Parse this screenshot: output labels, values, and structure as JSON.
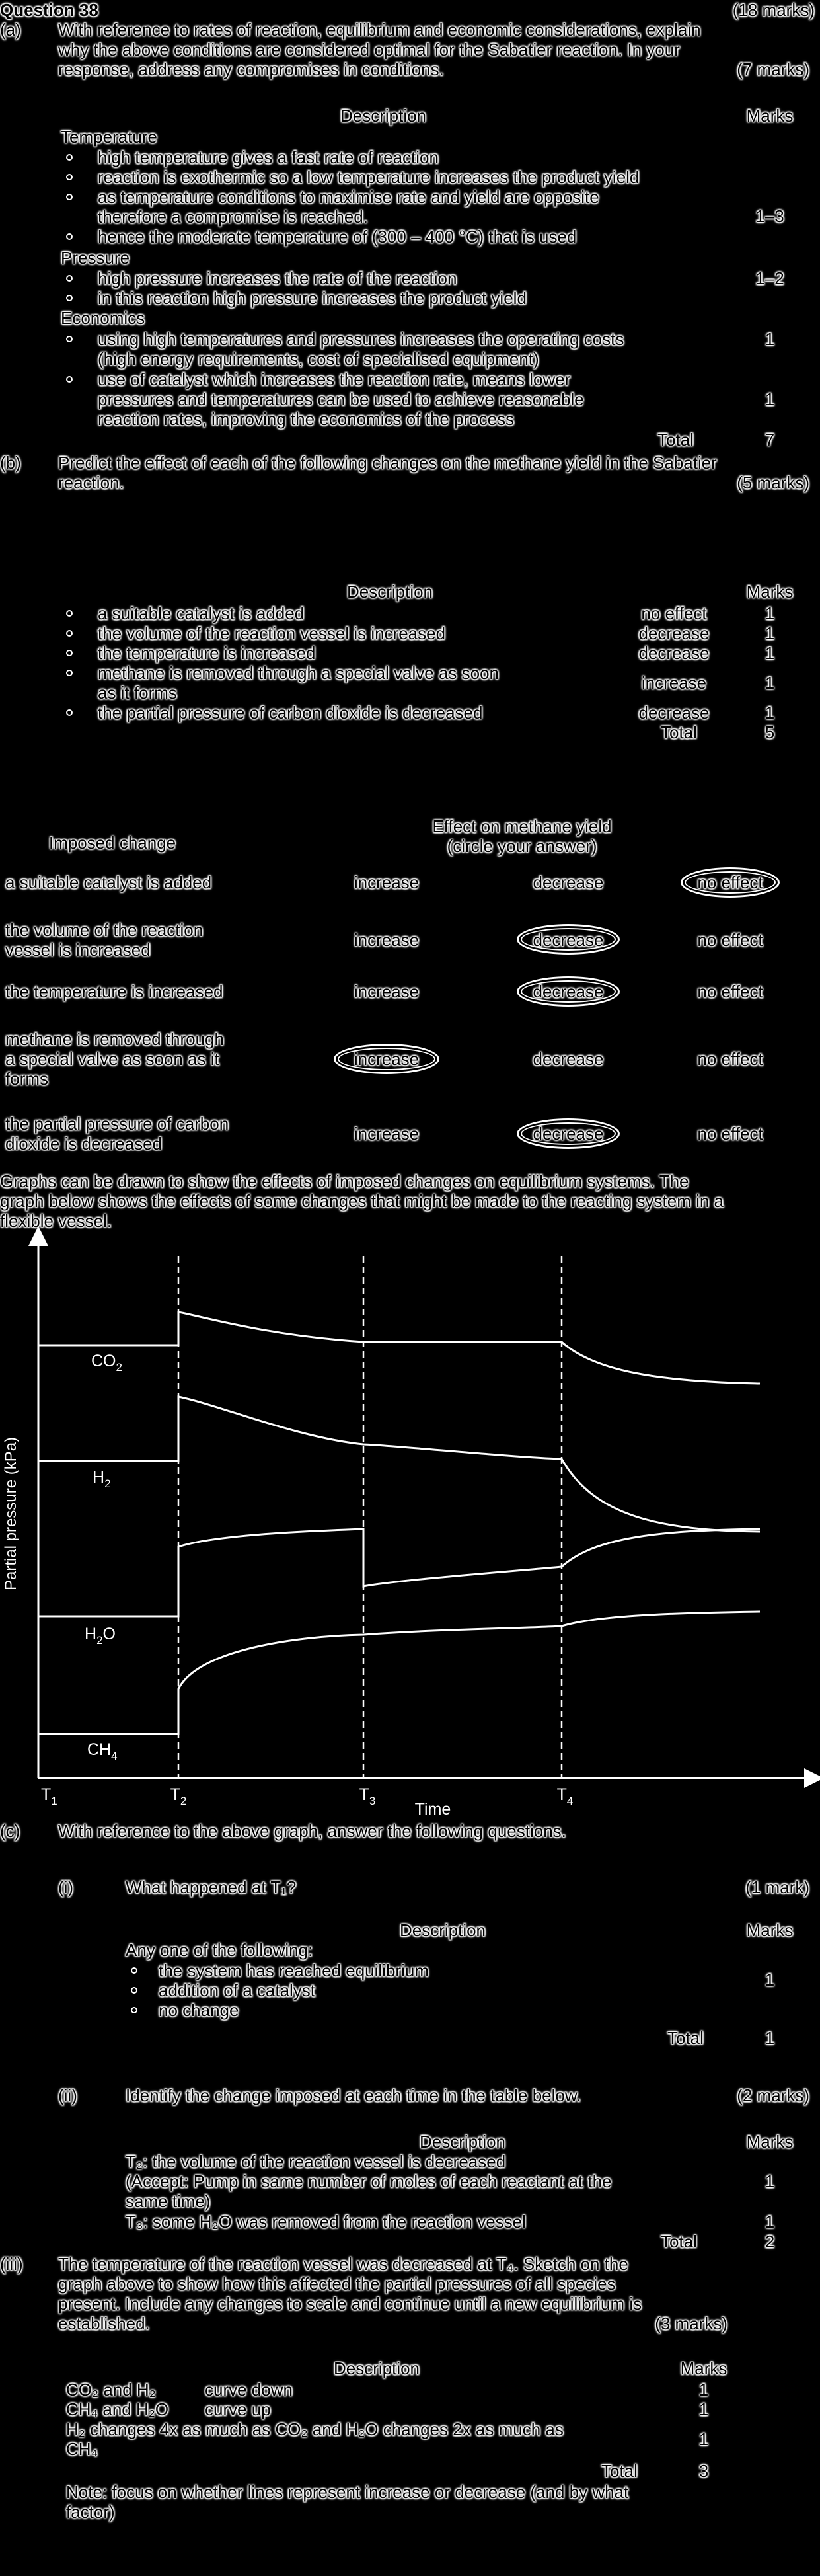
{
  "header": {
    "question": "Question 38",
    "marks": "(18 marks)"
  },
  "part_a": {
    "label": "(a)",
    "prompt_1": "With reference to rates of reaction, equilibrium and economic considerations, explain",
    "prompt_2": "why the above conditions are considered optimal for the Sabatier reaction. In your",
    "prompt_3": "response, address any compromises in conditions.",
    "marks": "(7 marks)",
    "col_description": "Description",
    "col_marks": "Marks",
    "temperature_heading": "Temperature",
    "temp_1": "high temperature gives a fast rate of reaction",
    "temp_2": "reaction is exothermic so a low temperature increases the product yield",
    "temp_3a": "as temperature conditions to maximise rate and yield are opposite",
    "temp_3b": "therefore a compromise is reached.",
    "temp_4": "hence the moderate temperature of (300 – 400 °C) that is used",
    "temp_marks": "1–3",
    "pressure_heading": "Pressure",
    "press_1": "high pressure increases the rate of the reaction",
    "press_2": "in this reaction high pressure increases the product yield",
    "press_marks": "1–2",
    "economics_heading": "Economics",
    "econ_1a": "using high temperatures and pressures increases the operating costs",
    "econ_1b": "(high energy requirements, cost of specialised equipment)",
    "econ_1_marks": "1",
    "econ_2a": "use of catalyst which increases the reaction rate, means lower",
    "econ_2b": "pressures and temperatures can be used to achieve reasonable",
    "econ_2c": "reaction rates, improving the economics of the process",
    "econ_2_marks": "1",
    "total_label": "Total",
    "total_value": "7"
  },
  "part_b": {
    "label": "(b)",
    "prompt_1": "Predict the effect of each of the following changes on the methane yield in the Sabatier",
    "prompt_2": "reaction.",
    "marks": "(5 marks)",
    "col_description": "Description",
    "col_marks": "Marks",
    "rows": [
      {
        "desc": "a suitable catalyst is added",
        "effect": "no effect",
        "mark": "1"
      },
      {
        "desc": "the volume of the reaction vessel is increased",
        "effect": "decrease",
        "mark": "1"
      },
      {
        "desc": "the temperature is increased",
        "effect": "decrease",
        "mark": "1"
      },
      {
        "desc": "methane is removed through a special valve as soon",
        "desc2": "as it forms",
        "effect": "increase",
        "mark": "1"
      },
      {
        "desc": "the partial pressure of carbon dioxide is decreased",
        "effect": "decrease",
        "mark": "1"
      }
    ],
    "total_label": "Total",
    "total_value": "5"
  },
  "answer_table": {
    "col_change": "Imposed change",
    "col_effect_1": "Effect on methane yield",
    "col_effect_2": "(circle your answer)",
    "opt_increase": "increase",
    "opt_decrease": "decrease",
    "opt_no_effect": "no effect",
    "rows": [
      {
        "change_1": "a suitable catalyst is added",
        "change_2": "",
        "change_3": "",
        "circled": "no effect"
      },
      {
        "change_1": "the volume of the reaction",
        "change_2": "vessel is increased",
        "change_3": "",
        "circled": "decrease"
      },
      {
        "change_1": "the temperature is increased",
        "change_2": "",
        "change_3": "",
        "circled": "decrease"
      },
      {
        "change_1": "methane is removed through",
        "change_2": "a special valve as soon as it",
        "change_3": "forms",
        "circled": "increase"
      },
      {
        "change_1": "the partial pressure of carbon",
        "change_2": "dioxide is decreased",
        "change_3": "",
        "circled": "decrease"
      }
    ]
  },
  "graph_intro": {
    "line_1": "Graphs can be drawn to show the effects of imposed changes on equilibrium systems. The",
    "line_2": "graph below shows the effects of some changes that might be made to the reacting system in a",
    "line_3": "flexible vessel."
  },
  "graph": {
    "ylabel": "Partial pressure (kPa)",
    "xlabel": "Time",
    "t1": "T",
    "t1_sub": "1",
    "t2": "T",
    "t2_sub": "2",
    "t3": "T",
    "t3_sub": "3",
    "t4": "T",
    "t4_sub": "4",
    "co2": "CO",
    "co2_sub": "2",
    "h2": "H",
    "h2_sub": "2",
    "h2o": "H",
    "h2o_sub": "2",
    "h2o_end": "O",
    "ch4": "CH",
    "ch4_sub": "4"
  },
  "part_c": {
    "label": "(c)",
    "prompt": "With reference to the above graph, answer the following questions.",
    "i_label": "(i)",
    "i_prompt": "What happened at T₁?",
    "i_marks": "(1 mark)",
    "i_col_description": "Description",
    "i_col_marks": "Marks",
    "i_intro": "Any one of the following:",
    "i_1": "the system has reached equilibrium",
    "i_2": "addition of a catalyst",
    "i_3": "no change",
    "i_mark": "1",
    "i_total_label": "Total",
    "i_total_value": "1",
    "ii_label": "(ii)",
    "ii_prompt": "Identify the change imposed at each time in the table below.",
    "ii_marks": "(2 marks)",
    "ii_col_description": "Description",
    "ii_col_marks": "Marks",
    "ii_1a": "T₂: the volume of the reaction vessel is decreased",
    "ii_1b": "(Accept: Pump in same number of moles of each reactant at the",
    "ii_1c": "same time)",
    "ii_1_mark": "1",
    "ii_2": "T₃: some H₂O was removed from the reaction vessel",
    "ii_2_mark": "1",
    "ii_total_label": "Total",
    "ii_total_value": "2",
    "iii_label": "(iii)",
    "iii_1": "The temperature of the reaction vessel was decreased at T₄. Sketch on the",
    "iii_2": "graph above to show how this affected the partial pressures of all species",
    "iii_3": "present. Include any changes to scale and continue until a new equilibrium is",
    "iii_4": "established.",
    "iii_marks": "(3 marks)",
    "iii_col_description": "Description",
    "iii_col_marks": "Marks",
    "iii_r1a": "CO₂ and H₂",
    "iii_r1b": "curve down",
    "iii_r1_mark": "1",
    "iii_r2a": "CH₄ and H₂O",
    "iii_r2b": "curve up",
    "iii_r2_mark": "1",
    "iii_r3a": "H₂ changes 4x as much as CO₂ and H₂O changes 2x as much as",
    "iii_r3b": "CH₄",
    "iii_r3_mark": "1",
    "iii_total_label": "Total",
    "iii_total_value": "3",
    "note_1": "Note: focus on whether lines represent increase or decrease (and by what",
    "note_2": "factor)"
  }
}
